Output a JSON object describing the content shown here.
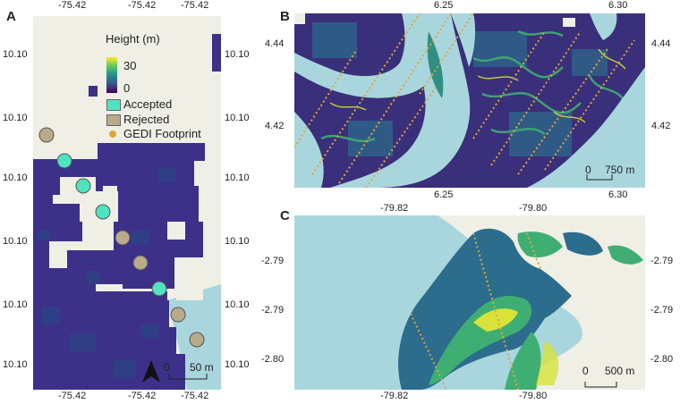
{
  "panels": {
    "a": {
      "letter": "A",
      "top_ticks": [
        "-75.42",
        "-75.42",
        "-75.42"
      ],
      "bottom_ticks": [
        "-75.42",
        "-75.42",
        "-75.42"
      ],
      "left_ticks": [
        "10.10",
        "10.10",
        "10.10",
        "10.10",
        "10.10",
        "10.10"
      ],
      "right_ticks": [
        "10.10",
        "10.10",
        "10.10",
        "10.10",
        "10.10",
        "10.10"
      ],
      "scale_zero": "0",
      "scale_label": "50 m"
    },
    "b": {
      "letter": "B",
      "top_ticks": [
        "6.25",
        "6.30"
      ],
      "bottom_ticks": [
        "6.25",
        "6.30"
      ],
      "left_ticks": [
        "4.44",
        "4.42"
      ],
      "right_ticks": [
        "4.44",
        "4.42"
      ],
      "scale_zero": "0",
      "scale_label": "750 m"
    },
    "c": {
      "letter": "C",
      "top_ticks": [
        "-79.82",
        "-79.80"
      ],
      "bottom_ticks": [
        "-79.82",
        "-79.80"
      ],
      "left_ticks": [
        "-2.79",
        "-2.79",
        "-2.80"
      ],
      "right_ticks": [
        "-2.79",
        "-2.79",
        "-2.80"
      ],
      "scale_zero": "0",
      "scale_label": "500 m"
    }
  },
  "legend": {
    "title": "Height (m)",
    "max_label": "30",
    "min_label": "0",
    "gradient_colors": [
      "#440154",
      "#3b528b",
      "#21908d",
      "#5dc962",
      "#fde725"
    ],
    "items": [
      {
        "label": "Accepted",
        "color": "#4fe3c1"
      },
      {
        "label": "Rejected",
        "color": "#b8ab8b"
      },
      {
        "label": "GEDI Footprint",
        "color": "#e0a53a"
      }
    ]
  },
  "colors": {
    "water": "#a9d6dd",
    "land": "#efefe6",
    "canopy_dark": "#3a2f7a",
    "canopy_mid": "#2c6c8c",
    "canopy_green": "#3fae73",
    "canopy_yellow": "#d8e23a",
    "gedi": "#e0a53a"
  }
}
